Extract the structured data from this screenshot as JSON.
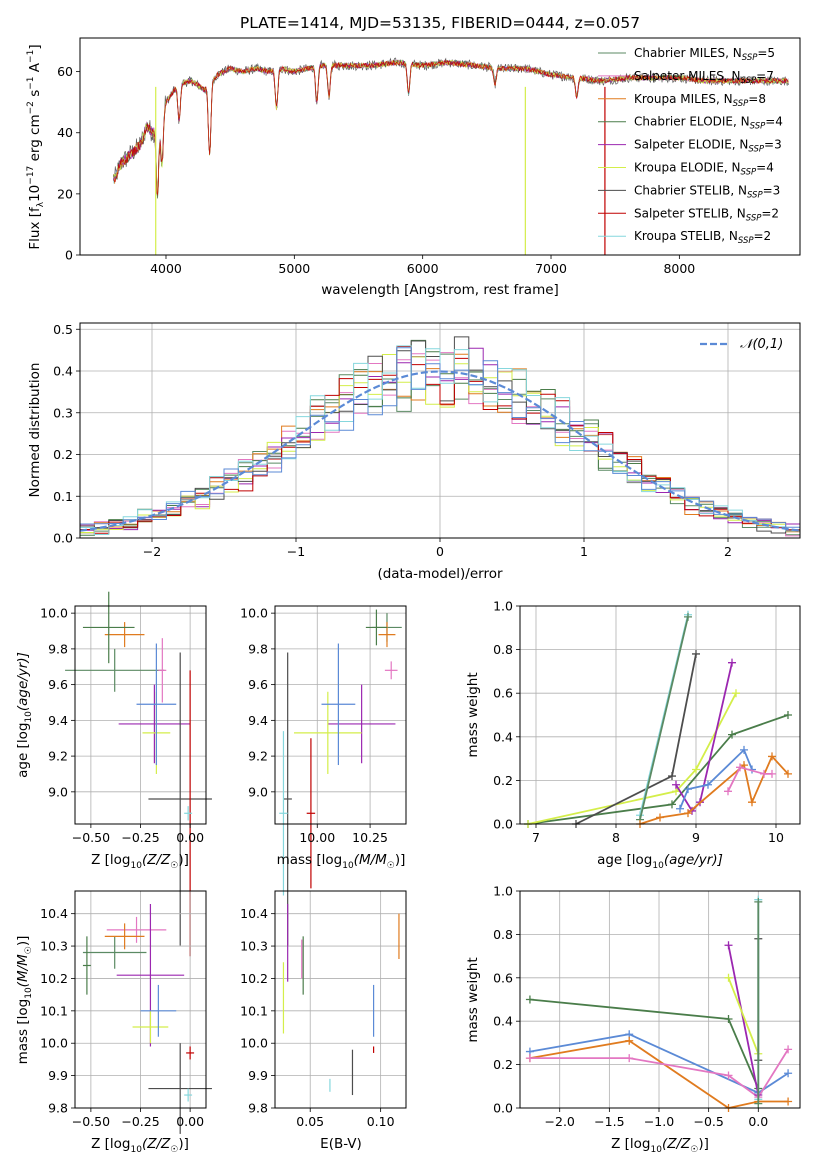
{
  "figure_title": "PLATE=1414, MJD=53135, FIBERID=0444, z=0.057",
  "series": [
    {
      "name": "Chabrier MILES, N$_{SSP}$=5",
      "label_main": "Chabrier MILES, N",
      "label_sub": "SSP",
      "label_tail": "=5",
      "color": "#5b8a63"
    },
    {
      "name": "Salpeter MILES, N$_{SSP}$=7",
      "label_main": "Salpeter MILES, N",
      "label_sub": "SSP",
      "label_tail": "=7",
      "color": "#e377c2"
    },
    {
      "name": "Kroupa MILES, N$_{SSP}$=8",
      "label_main": "Kroupa MILES, N",
      "label_sub": "SSP",
      "label_tail": "=8",
      "color": "#e07b1f"
    },
    {
      "name": "Chabrier ELODIE, N$_{SSP}$=4",
      "label_main": "Chabrier ELODIE, N",
      "label_sub": "SSP",
      "label_tail": "=4",
      "color": "#4a7d4a"
    },
    {
      "name": "Salpeter ELODIE, N$_{SSP}$=3",
      "label_main": "Salpeter ELODIE, N",
      "label_sub": "SSP",
      "label_tail": "=3",
      "color": "#9b27b0"
    },
    {
      "name": "Kroupa ELODIE, N$_{SSP}$=4",
      "label_main": "Kroupa ELODIE, N",
      "label_sub": "SSP",
      "label_tail": "=4",
      "color": "#d4ee4a"
    },
    {
      "name": "Chabrier STELIB, N$_{SSP}$=3",
      "label_main": "Chabrier STELIB, N",
      "label_sub": "SSP",
      "label_tail": "=3",
      "color": "#4d4d4d"
    },
    {
      "name": "Salpeter STELIB, N$_{SSP}$=2",
      "label_main": "Salpeter STELIB, N",
      "label_sub": "SSP",
      "label_tail": "=2",
      "color": "#c00000"
    },
    {
      "name": "Kroupa STELIB, N$_{SSP}$=2",
      "label_main": "Kroupa STELIB, N",
      "label_sub": "SSP",
      "label_tail": "=2",
      "color": "#86d7dd"
    }
  ],
  "extra_colors": {
    "blue": "#5b8ad6"
  },
  "chart_data": [
    {
      "id": "spectrum",
      "type": "line",
      "title": "PLATE=1414, MJD=53135, FIBERID=0444, z=0.057",
      "xlabel": "wavelength [Angstrom, rest frame]",
      "ylabel": "Flux [f_λ 10^-17 erg cm^-2 s^-1 A^-1]",
      "ylabel_parts": {
        "a": "Flux [f",
        "b": "λ",
        "c": "10",
        "d": "−17",
        "e": " erg cm",
        "f": "−2",
        "g": " s",
        "h": "−1",
        "i": " A",
        "j": "−1",
        "k": "]"
      },
      "xlim": [
        3330,
        8940
      ],
      "ylim": [
        0,
        71
      ],
      "xticks": [
        4000,
        5000,
        6000,
        7000,
        8000
      ],
      "yticks": [
        0,
        20,
        40,
        60
      ],
      "grid": false,
      "legend": "right",
      "envelope": {
        "x": [
          3600,
          3650,
          3700,
          3800,
          3850,
          3900,
          3950,
          4000,
          4100,
          4200,
          4300,
          4400,
          4500,
          4600,
          4700,
          4800,
          4900,
          5000,
          5200,
          5400,
          5600,
          5800,
          6000,
          6200,
          6400,
          6600,
          6800,
          7000,
          7200,
          7400,
          7600,
          7800,
          8000,
          8200,
          8400,
          8600,
          8800
        ],
        "y": [
          25,
          30,
          32,
          36,
          42,
          40,
          45,
          50,
          56,
          57,
          54,
          59,
          61,
          60,
          61,
          60,
          61,
          60,
          62,
          62,
          62,
          63,
          62,
          63,
          62,
          61,
          61,
          59,
          58,
          57,
          58,
          58,
          58,
          57,
          57,
          57,
          57
        ]
      },
      "dips": [
        {
          "x": 3934,
          "y": 20
        },
        {
          "x": 3969,
          "y": 30
        },
        {
          "x": 4102,
          "y": 44
        },
        {
          "x": 4340,
          "y": 33
        },
        {
          "x": 4861,
          "y": 48
        },
        {
          "x": 5175,
          "y": 50
        },
        {
          "x": 5270,
          "y": 52
        },
        {
          "x": 5890,
          "y": 53
        },
        {
          "x": 6563,
          "y": 56
        },
        {
          "x": 7200,
          "y": 52
        }
      ],
      "spikes": [
        {
          "x": 3920,
          "y": 0,
          "color": "#d4ee4a"
        },
        {
          "x": 6800,
          "y": 0,
          "color": "#d4ee4a"
        },
        {
          "x": 7420,
          "y": 0,
          "color": "#c00000"
        }
      ]
    },
    {
      "id": "residuals",
      "type": "area",
      "xlabel": "(data-model)/error",
      "ylabel": "Normed distribution",
      "xlim": [
        -2.5,
        2.5
      ],
      "ylim": [
        0,
        0.515
      ],
      "xticks": [
        -2,
        -1,
        0,
        1,
        2
      ],
      "yticks": [
        0.0,
        0.1,
        0.2,
        0.3,
        0.4,
        0.5
      ],
      "grid": true,
      "legend": "top-right",
      "legend_label": "𝒩(0,1)",
      "bin_width": 0.1,
      "normal_curve": {
        "mu": 0,
        "sigma": 1
      }
    },
    {
      "id": "age_vs_Z",
      "type": "scatter",
      "xlabel": "Z [log10(Z/Z☉)]",
      "xlabel_parts": {
        "a": "Z [log",
        "b": "10",
        "c": "(Z/Z",
        "d": "☉",
        "e": ")]"
      },
      "ylabel": "age [log10(age/yr)]",
      "ylabel_parts": {
        "a": "age  [log",
        "b": "10",
        "c": "(age/yr)]"
      },
      "xlim": [
        -0.58,
        0.08
      ],
      "ylim": [
        8.82,
        10.04
      ],
      "xticks": [
        -0.5,
        -0.25,
        0.0
      ],
      "xticklabels": [
        "−0.50",
        "−0.25",
        "0.00"
      ],
      "yticks": [
        9.0,
        9.2,
        9.4,
        9.6,
        9.8,
        10.0
      ],
      "grid": true,
      "points": [
        {
          "c": 0,
          "x": -0.38,
          "xerr": 0.25,
          "y": 9.68,
          "yerr": 0.12
        },
        {
          "c": 1,
          "x": -0.14,
          "xerr": 0.02,
          "y": 9.68,
          "yerr": 0.18
        },
        {
          "c": 2,
          "x": -0.33,
          "xerr": 0.1,
          "y": 9.88,
          "yerr": 0.07
        },
        {
          "c": 3,
          "x": -0.41,
          "xerr": 0.13,
          "y": 9.92,
          "yerr": 0.2
        },
        {
          "c": 4,
          "x": -0.18,
          "xerr": 0.18,
          "y": 9.38,
          "yerr": 0.22
        },
        {
          "c": 5,
          "x": -0.17,
          "xerr": 0.07,
          "y": 9.33,
          "yerr": 0.23
        },
        {
          "c": 6,
          "x": -0.05,
          "xerr": 0.16,
          "y": 8.96,
          "yerr": 0.82
        },
        {
          "c": 7,
          "x": 0.0,
          "xerr": 0.0,
          "y": 8.88,
          "yerr": 0.8
        },
        {
          "c": 8,
          "x": -0.01,
          "xerr": 0.02,
          "y": 8.88,
          "yerr": 0.04
        },
        {
          "c": 9,
          "x": -0.17,
          "xerr": 0.1,
          "y": 9.49,
          "yerr": 0.34
        }
      ]
    },
    {
      "id": "age_vs_mass",
      "type": "scatter",
      "xlabel": "mass [log10(M/M☉)]",
      "xlabel_parts": {
        "a": "mass [log",
        "b": "10",
        "c": "(M/M",
        "d": "☉",
        "e": ")]"
      },
      "xlim": [
        9.8,
        10.42
      ],
      "ylim": [
        8.82,
        10.04
      ],
      "xticks": [
        10.0,
        10.25
      ],
      "xticklabels": [
        "10.00",
        "10.25"
      ],
      "yticks": [
        9.0,
        9.2,
        9.4,
        9.6,
        9.8,
        10.0
      ],
      "grid": true,
      "points": [
        {
          "c": 0,
          "x": 10.33,
          "xerr": 0.07,
          "y": 9.92,
          "yerr": 0.08
        },
        {
          "c": 1,
          "x": 10.35,
          "xerr": 0.03,
          "y": 9.68,
          "yerr": 0.05
        },
        {
          "c": 2,
          "x": 10.33,
          "xerr": 0.04,
          "y": 9.88,
          "yerr": 0.07
        },
        {
          "c": 3,
          "x": 10.28,
          "xerr": 0.05,
          "y": 9.92,
          "yerr": 0.1
        },
        {
          "c": 4,
          "x": 10.21,
          "xerr": 0.16,
          "y": 9.38,
          "yerr": 0.22
        },
        {
          "c": 5,
          "x": 10.05,
          "xerr": 0.16,
          "y": 9.33,
          "yerr": 0.23
        },
        {
          "c": 6,
          "x": 9.86,
          "xerr": 0.02,
          "y": 8.96,
          "yerr": 0.82
        },
        {
          "c": 7,
          "x": 9.97,
          "xerr": 0.02,
          "y": 8.88,
          "yerr": 0.42
        },
        {
          "c": 8,
          "x": 9.84,
          "xerr": 0.02,
          "y": 8.88,
          "yerr": 0.46
        },
        {
          "c": 9,
          "x": 10.1,
          "xerr": 0.08,
          "y": 9.49,
          "yerr": 0.34
        }
      ]
    },
    {
      "id": "massweight_vs_age",
      "type": "line",
      "xlabel": "age [log10(age/yr)]",
      "xlabel_parts": {
        "a": "age  [log",
        "b": "10",
        "c": "(age/yr)]"
      },
      "ylabel": "mass weight",
      "xlim": [
        6.8,
        10.3
      ],
      "ylim": [
        0.0,
        1.0
      ],
      "xticks": [
        7,
        8,
        9,
        10
      ],
      "yticks": [
        0.0,
        0.2,
        0.4,
        0.6,
        0.8,
        1.0
      ],
      "grid": true,
      "lines": [
        {
          "c": 3,
          "x": [
            6.9,
            8.7,
            9.45,
            10.15
          ],
          "y": [
            0.0,
            0.09,
            0.41,
            0.5
          ]
        },
        {
          "c": 5,
          "x": [
            6.9,
            8.75,
            9.0,
            9.5
          ],
          "y": [
            0.0,
            0.15,
            0.25,
            0.6
          ]
        },
        {
          "c": 4,
          "x": [
            8.75,
            8.95,
            9.05,
            9.45
          ],
          "y": [
            0.18,
            0.06,
            0.1,
            0.74
          ]
        },
        {
          "c": 6,
          "x": [
            7.5,
            8.7,
            9.0
          ],
          "y": [
            0.0,
            0.22,
            0.78
          ]
        },
        {
          "c": 8,
          "x": [
            8.3,
            8.9
          ],
          "y": [
            0.04,
            0.96
          ]
        },
        {
          "c": 0,
          "x": [
            8.3,
            8.9
          ],
          "y": [
            0.02,
            0.95
          ]
        },
        {
          "c": 9,
          "x": [
            8.8,
            8.9,
            9.15,
            9.6,
            9.7
          ],
          "y": [
            0.07,
            0.16,
            0.18,
            0.34,
            0.25
          ]
        },
        {
          "c": 2,
          "x": [
            8.3,
            8.55,
            8.9,
            9.6,
            9.7,
            9.95,
            10.15
          ],
          "y": [
            0.0,
            0.03,
            0.05,
            0.27,
            0.1,
            0.31,
            0.23
          ]
        },
        {
          "c": 1,
          "x": [
            9.4,
            9.55,
            9.85,
            9.95
          ],
          "y": [
            0.15,
            0.26,
            0.23,
            0.23
          ]
        }
      ]
    },
    {
      "id": "mass_vs_Z",
      "type": "scatter",
      "xlabel": "Z [log10(Z/Z☉)]",
      "xlabel_parts": {
        "a": "Z [log",
        "b": "10",
        "c": "(Z/Z",
        "d": "☉",
        "e": ")]"
      },
      "ylabel": "mass [log10(M/M☉)]",
      "ylabel_parts": {
        "a": "mass [log",
        "b": "10",
        "c": "(M/M",
        "d": "☉",
        "e": ")]"
      },
      "xlim": [
        -0.58,
        0.08
      ],
      "ylim": [
        9.8,
        10.47
      ],
      "xticks": [
        -0.5,
        -0.25,
        0.0
      ],
      "xticklabels": [
        "−0.50",
        "−0.25",
        "0.00"
      ],
      "yticks": [
        9.8,
        9.9,
        10.0,
        10.1,
        10.2,
        10.3,
        10.4
      ],
      "grid": true,
      "points": [
        {
          "c": 0,
          "x": -0.38,
          "xerr": 0.16,
          "y": 10.28,
          "yerr": 0.05
        },
        {
          "c": 1,
          "x": -0.27,
          "xerr": 0.15,
          "y": 10.35,
          "yerr": 0.04
        },
        {
          "c": 2,
          "x": -0.33,
          "xerr": 0.1,
          "y": 10.33,
          "yerr": 0.04
        },
        {
          "c": 3,
          "x": -0.52,
          "xerr": 0.02,
          "y": 10.24,
          "yerr": 0.09
        },
        {
          "c": 4,
          "x": -0.2,
          "xerr": 0.17,
          "y": 10.21,
          "yerr": 0.22
        },
        {
          "c": 5,
          "x": -0.2,
          "xerr": 0.09,
          "y": 10.05,
          "yerr": 0.05
        },
        {
          "c": 6,
          "x": -0.05,
          "xerr": 0.16,
          "y": 9.86,
          "yerr": 0.14
        },
        {
          "c": 7,
          "x": 0.0,
          "xerr": 0.02,
          "y": 9.97,
          "yerr": 0.02
        },
        {
          "c": 8,
          "x": -0.01,
          "xerr": 0.02,
          "y": 9.84,
          "yerr": 0.02
        },
        {
          "c": 9,
          "x": -0.16,
          "xerr": 0.09,
          "y": 10.1,
          "yerr": 0.08
        }
      ]
    },
    {
      "id": "mass_vs_ebv",
      "type": "scatter",
      "xlabel": "E(B-V)",
      "xlim": [
        0.025,
        0.118
      ],
      "ylim": [
        9.8,
        10.47
      ],
      "xticks": [
        0.05,
        0.1
      ],
      "xticklabels": [
        "0.05",
        "0.10"
      ],
      "yticks": [
        9.8,
        9.9,
        10.0,
        10.1,
        10.2,
        10.3,
        10.4
      ],
      "grid": true,
      "points": [
        {
          "c": 1,
          "x": 0.044,
          "xerr": 0.0,
          "y": 10.26,
          "yerr": 0.06
        },
        {
          "c": 2,
          "x": 0.113,
          "xerr": 0.0,
          "y": 10.33,
          "yerr": 0.07
        },
        {
          "c": 3,
          "x": 0.045,
          "xerr": 0.0,
          "y": 10.24,
          "yerr": 0.09
        },
        {
          "c": 4,
          "x": 0.034,
          "xerr": 0.0,
          "y": 10.31,
          "yerr": 0.12
        },
        {
          "c": 5,
          "x": 0.031,
          "xerr": 0.0,
          "y": 10.14,
          "yerr": 0.11
        },
        {
          "c": 6,
          "x": 0.08,
          "xerr": 0.0,
          "y": 9.91,
          "yerr": 0.07
        },
        {
          "c": 7,
          "x": 0.095,
          "xerr": 0.0,
          "y": 9.98,
          "yerr": 0.01
        },
        {
          "c": 8,
          "x": 0.064,
          "xerr": 0.0,
          "y": 9.87,
          "yerr": 0.02
        },
        {
          "c": 9,
          "x": 0.095,
          "xerr": 0.0,
          "y": 10.1,
          "yerr": 0.08
        }
      ]
    },
    {
      "id": "massweight_vs_Z",
      "type": "line",
      "xlabel": "Z [log10(Z/Z☉)]",
      "xlabel_parts": {
        "a": "Z [log",
        "b": "10",
        "c": "(Z/Z",
        "d": "☉",
        "e": ")]"
      },
      "ylabel": "mass weight",
      "xlim": [
        -2.4,
        0.42
      ],
      "ylim": [
        0.0,
        1.0
      ],
      "xticks": [
        -2.0,
        -1.5,
        -1.0,
        -0.5,
        0.0
      ],
      "xticklabels": [
        "−2.0",
        "−1.5",
        "−1.0",
        "−0.5",
        "0.0"
      ],
      "yticks": [
        0.0,
        0.2,
        0.4,
        0.6,
        0.8,
        1.0
      ],
      "grid": true,
      "lines": [
        {
          "c": 3,
          "x": [
            -2.3,
            -0.3,
            0.0
          ],
          "y": [
            0.5,
            0.41,
            0.09
          ]
        },
        {
          "c": 9,
          "x": [
            -2.3,
            -1.3,
            0.0,
            0.3
          ],
          "y": [
            0.26,
            0.34,
            0.07,
            0.16
          ]
        },
        {
          "c": 2,
          "x": [
            -2.3,
            -1.3,
            -0.3,
            0.0,
            0.3
          ],
          "y": [
            0.23,
            0.31,
            0.0,
            0.03,
            0.03
          ]
        },
        {
          "c": 1,
          "x": [
            -2.3,
            -1.3,
            -0.3,
            0.0,
            0.3
          ],
          "y": [
            0.23,
            0.23,
            0.15,
            0.05,
            0.27
          ]
        },
        {
          "c": 4,
          "x": [
            -0.3,
            0.0
          ],
          "y": [
            0.75,
            0.06
          ]
        },
        {
          "c": 5,
          "x": [
            -0.3,
            0.0
          ],
          "y": [
            0.6,
            0.25
          ]
        },
        {
          "c": 6,
          "x": [
            0.0,
            0.0
          ],
          "y": [
            0.22,
            0.78
          ]
        },
        {
          "c": 8,
          "x": [
            0.0,
            0.0
          ],
          "y": [
            0.04,
            0.96
          ]
        },
        {
          "c": 0,
          "x": [
            0.0,
            0.0
          ],
          "y": [
            0.02,
            0.95
          ]
        }
      ]
    }
  ]
}
